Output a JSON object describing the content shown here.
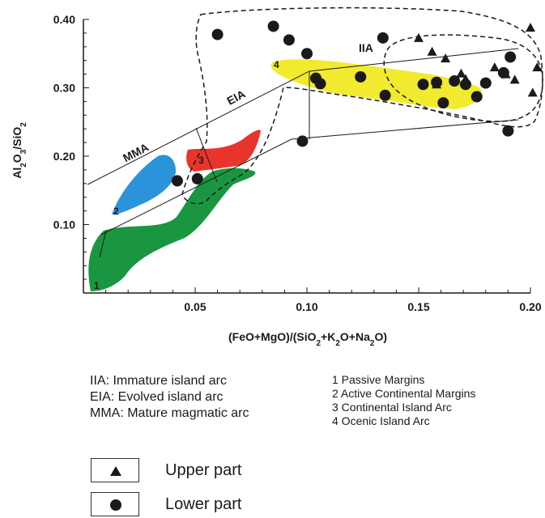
{
  "chart_data": {
    "type": "scatter",
    "title": "",
    "xlabel_parts": [
      {
        "t": "(FeO+MgO)/(SiO",
        "sub": false
      },
      {
        "t": "2",
        "sub": true
      },
      {
        "t": "+K",
        "sub": false
      },
      {
        "t": "2",
        "sub": true
      },
      {
        "t": "O+Na",
        "sub": false
      },
      {
        "t": "2",
        "sub": true
      },
      {
        "t": "O)",
        "sub": false
      }
    ],
    "ylabel_parts": [
      {
        "t": "Al",
        "sub": false
      },
      {
        "t": "2",
        "sub": true
      },
      {
        "t": "O",
        "sub": false
      },
      {
        "t": "3",
        "sub": true
      },
      {
        "t": "/SiO",
        "sub": false
      },
      {
        "t": "2",
        "sub": true
      }
    ],
    "xlim": [
      0,
      0.2
    ],
    "ylim": [
      0,
      0.4
    ],
    "x_ticks": [
      "0.05",
      "0.10",
      "0.15",
      "0.20"
    ],
    "x_tick_values": [
      0.05,
      0.1,
      0.15,
      0.2
    ],
    "y_ticks": [
      "0.10",
      "0.20",
      "0.30",
      "0.40"
    ],
    "y_tick_values": [
      0.1,
      0.2,
      0.3,
      0.4
    ],
    "grid": false,
    "field_labels": [
      "IIA",
      "EIA",
      "MMA"
    ],
    "region_numbers": [
      "1",
      "2",
      "3",
      "4"
    ],
    "region_colors": {
      "passive_margins": "#1a9641",
      "active_continental_margins": "#2b93d9",
      "continental_island_arc": "#e8342c",
      "oceanic_island_arc": "#f2ea2e"
    },
    "series": [
      {
        "name": "Upper part",
        "marker": "triangle",
        "points": [
          [
            0.2,
            0.388
          ],
          [
            0.15,
            0.373
          ],
          [
            0.156,
            0.353
          ],
          [
            0.162,
            0.343
          ],
          [
            0.169,
            0.321
          ],
          [
            0.171,
            0.313
          ],
          [
            0.184,
            0.33
          ],
          [
            0.189,
            0.32
          ],
          [
            0.193,
            0.312
          ],
          [
            0.203,
            0.33
          ],
          [
            0.201,
            0.293
          ],
          [
            0.158,
            0.305
          ]
        ]
      },
      {
        "name": "Lower part",
        "marker": "circle",
        "points": [
          [
            0.06,
            0.378
          ],
          [
            0.085,
            0.39
          ],
          [
            0.092,
            0.37
          ],
          [
            0.1,
            0.35
          ],
          [
            0.134,
            0.373
          ],
          [
            0.124,
            0.316
          ],
          [
            0.104,
            0.314
          ],
          [
            0.106,
            0.306
          ],
          [
            0.135,
            0.289
          ],
          [
            0.152,
            0.305
          ],
          [
            0.158,
            0.308
          ],
          [
            0.166,
            0.31
          ],
          [
            0.161,
            0.278
          ],
          [
            0.171,
            0.305
          ],
          [
            0.176,
            0.287
          ],
          [
            0.18,
            0.307
          ],
          [
            0.188,
            0.322
          ],
          [
            0.191,
            0.345
          ],
          [
            0.19,
            0.237
          ],
          [
            0.098,
            0.222
          ],
          [
            0.042,
            0.164
          ],
          [
            0.051,
            0.167
          ]
        ]
      }
    ]
  },
  "notes": {
    "arc_types": [
      "IIA: Immature island arc",
      "EIA: Evolved island arc",
      "MMA: Mature magmatic arc"
    ],
    "settings": [
      "1 Passive Margins",
      "2 Active Continental Margins",
      "3 Continental Island Arc",
      "4 Ocenic Island Arc"
    ]
  },
  "legend": {
    "upper_label": "Upper part",
    "lower_label": "Lower part"
  }
}
